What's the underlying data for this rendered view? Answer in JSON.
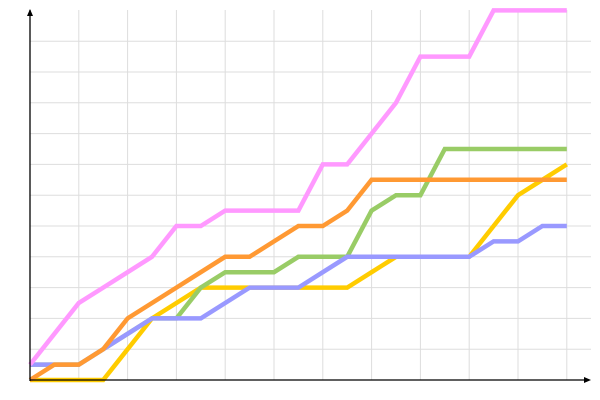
{
  "chart_data": {
    "type": "line",
    "title": "",
    "xlabel": "",
    "ylabel": "",
    "x": [
      0,
      1,
      2,
      3,
      4,
      5,
      6,
      7,
      8,
      9,
      10,
      11,
      12,
      13,
      14,
      15,
      16,
      17,
      18,
      19,
      20,
      21,
      22
    ],
    "xlim": [
      0,
      23
    ],
    "ylim": [
      0,
      24
    ],
    "grid": true,
    "grid_step_x": 2,
    "grid_step_y": 2,
    "tick_labels_shown": false,
    "legend": "none",
    "series": [
      {
        "color": "#ffcc00",
        "values": [
          0,
          0,
          0,
          0,
          2,
          4,
          5,
          6,
          6,
          6,
          6,
          6,
          6,
          6,
          7,
          8,
          8,
          8,
          8,
          10,
          12,
          13,
          14
        ]
      },
      {
        "color": "#99cc66",
        "values": [
          1,
          1,
          1,
          2,
          3,
          4,
          4,
          6,
          7,
          7,
          7,
          8,
          8,
          8,
          11,
          12,
          12,
          15,
          15,
          15,
          15,
          15,
          15
        ]
      },
      {
        "color": "#9999ff",
        "values": [
          1,
          1,
          1,
          2,
          3,
          4,
          4,
          4,
          5,
          6,
          6,
          6,
          7,
          8,
          8,
          8,
          8,
          8,
          8,
          9,
          9,
          10,
          10
        ]
      },
      {
        "color": "#ff9933",
        "values": [
          0,
          1,
          1,
          2,
          4,
          5,
          6,
          7,
          8,
          8,
          9,
          10,
          10,
          11,
          13,
          13,
          13,
          13,
          13,
          13,
          13,
          13,
          13
        ]
      },
      {
        "color": "#ff99ff",
        "values": [
          1,
          3,
          5,
          6,
          7,
          8,
          10,
          10,
          11,
          11,
          11,
          11,
          14,
          14,
          16,
          18,
          21,
          21,
          21,
          24,
          24,
          24,
          24
        ]
      }
    ]
  }
}
